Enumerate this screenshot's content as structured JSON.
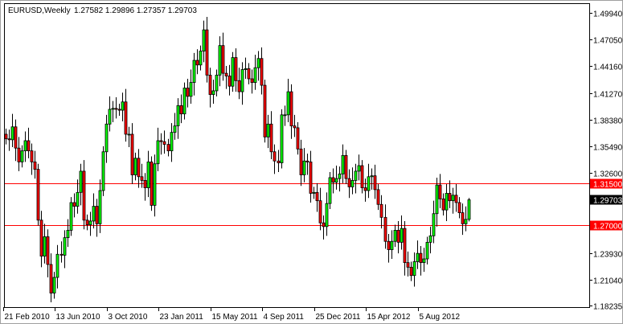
{
  "header": {
    "symbol_timeframe": "EURUSD,Weekly",
    "ohlc_text": "1.27582 1.29896 1.27357 1.29703"
  },
  "chart_data": {
    "type": "candlestick",
    "symbol": "EURUSD",
    "timeframe": "Weekly",
    "last_bar": {
      "open": 1.27582,
      "high": 1.29896,
      "low": 1.27357,
      "close": 1.29703
    },
    "ylim": [
      1.18235,
      1.5045
    ],
    "y_ticks": [
      "1.49940",
      "1.47050",
      "1.44160",
      "1.41270",
      "1.38380",
      "1.35490",
      "1.32600",
      "1.23930",
      "1.21040",
      "1.18235"
    ],
    "x_ticks": [
      {
        "label": "21 Feb 2010",
        "bar": 0
      },
      {
        "label": "13 Jun 2010",
        "bar": 16
      },
      {
        "label": "3 Oct 2010",
        "bar": 32
      },
      {
        "label": "23 Jan 2011",
        "bar": 48
      },
      {
        "label": "15 May 2011",
        "bar": 64
      },
      {
        "label": "4 Sep 2011",
        "bar": 80
      },
      {
        "label": "25 Dec 2011",
        "bar": 96
      },
      {
        "label": "15 Apr 2012",
        "bar": 112
      },
      {
        "label": "5 Aug 2012",
        "bar": 128
      }
    ],
    "horizontal_lines": [
      {
        "price": 1.315,
        "label": "1.31500",
        "color": "#ff0000"
      },
      {
        "price": 1.27,
        "label": "1.27000",
        "color": "#ff0000"
      }
    ],
    "current_price": {
      "price": 1.29703,
      "label": "1.29703",
      "color": "#000000"
    },
    "first_open": 1.368,
    "closes": [
      1.363,
      1.362,
      1.376,
      1.353,
      1.338,
      1.35,
      1.361,
      1.35,
      1.338,
      1.33,
      1.275,
      1.236,
      1.257,
      1.227,
      1.196,
      1.213,
      1.238,
      1.237,
      1.256,
      1.264,
      1.294,
      1.29,
      1.305,
      1.328,
      1.275,
      1.27,
      1.274,
      1.29,
      1.271,
      1.307,
      1.349,
      1.379,
      1.395,
      1.396,
      1.395,
      1.394,
      1.403,
      1.368,
      1.368,
      1.324,
      1.342,
      1.322,
      1.318,
      1.31,
      1.338,
      1.291,
      1.336,
      1.361,
      1.36,
      1.357,
      1.35,
      1.37,
      1.377,
      1.399,
      1.39,
      1.418,
      1.409,
      1.424,
      1.448,
      1.443,
      1.458,
      1.481,
      1.432,
      1.411,
      1.415,
      1.432,
      1.464,
      1.434,
      1.431,
      1.42,
      1.451,
      1.426,
      1.414,
      1.438,
      1.439,
      1.428,
      1.424,
      1.44,
      1.45,
      1.421,
      1.365,
      1.379,
      1.349,
      1.339,
      1.337,
      1.389,
      1.389,
      1.414,
      1.377,
      1.375,
      1.352,
      1.324,
      1.339,
      1.338,
      1.304,
      1.305,
      1.296,
      1.272,
      1.268,
      1.293,
      1.321,
      1.316,
      1.32,
      1.325,
      1.345,
      1.32,
      1.311,
      1.318,
      1.328,
      1.334,
      1.31,
      1.307,
      1.322,
      1.323,
      1.308,
      1.292,
      1.278,
      1.252,
      1.243,
      1.252,
      1.264,
      1.251,
      1.266,
      1.229,
      1.224,
      1.215,
      1.23,
      1.239,
      1.229,
      1.233,
      1.251,
      1.258,
      1.282,
      1.313,
      1.298,
      1.286,
      1.304,
      1.296,
      1.302,
      1.294,
      1.283,
      1.271,
      1.27582,
      1.29703
    ],
    "colors": {
      "bull": "#00ff00",
      "bear": "#ff0000",
      "outline": "#000000",
      "background": "#ffffff",
      "level_line": "#ff0000"
    },
    "grid": false
  }
}
